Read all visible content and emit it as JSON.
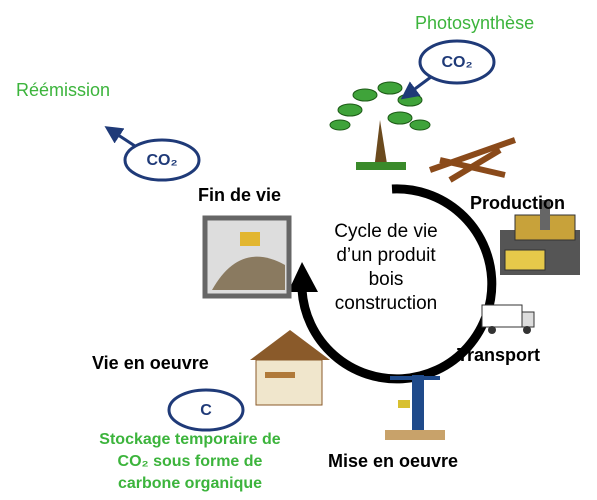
{
  "photosynthesis": {
    "label": "Photosynthèse",
    "badge": "CO₂"
  },
  "reemission": {
    "label": "Réémission",
    "badge": "CO₂"
  },
  "center": {
    "lines": [
      "Cycle de vie",
      "d’un produit",
      "bois",
      "construction"
    ]
  },
  "stages": {
    "end_of_life": "Fin de vie",
    "production": "Production",
    "transport": "Transport",
    "use": "Vie en oeuvre",
    "installation": "Mise en oeuvre"
  },
  "storage": {
    "badge": "C",
    "lines": [
      "Stockage temporaire de",
      "CO₂ sous forme de",
      "carbone organique"
    ]
  }
}
